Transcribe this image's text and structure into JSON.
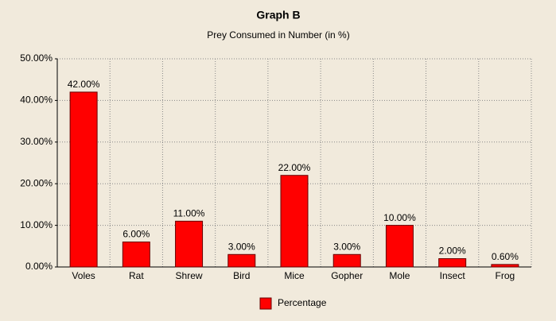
{
  "chart_data": {
    "type": "bar",
    "title": "Graph B",
    "subtitle": "Prey Consumed in Number (in %)",
    "categories": [
      "Voles",
      "Rat",
      "Shrew",
      "Bird",
      "Mice",
      "Gopher",
      "Mole",
      "Insect",
      "Frog"
    ],
    "series": [
      {
        "name": "Percentage",
        "color": "#ff0000",
        "values": [
          42,
          6,
          11,
          3,
          22,
          3,
          10,
          2,
          0.6
        ],
        "value_labels": [
          "42.00%",
          "6.00%",
          "11.00%",
          "3.00%",
          "22.00%",
          "3.00%",
          "10.00%",
          "2.00%",
          "0.60%"
        ]
      }
    ],
    "ylim": [
      0,
      50
    ],
    "yticks": [
      {
        "value": 0,
        "label": "0.00%"
      },
      {
        "value": 10,
        "label": "10.00%"
      },
      {
        "value": 20,
        "label": "20.00%"
      },
      {
        "value": 30,
        "label": "30.00%"
      },
      {
        "value": 40,
        "label": "40.00%"
      },
      {
        "value": 50,
        "label": "50.00%"
      }
    ],
    "grid": true,
    "legend": "bottom"
  }
}
